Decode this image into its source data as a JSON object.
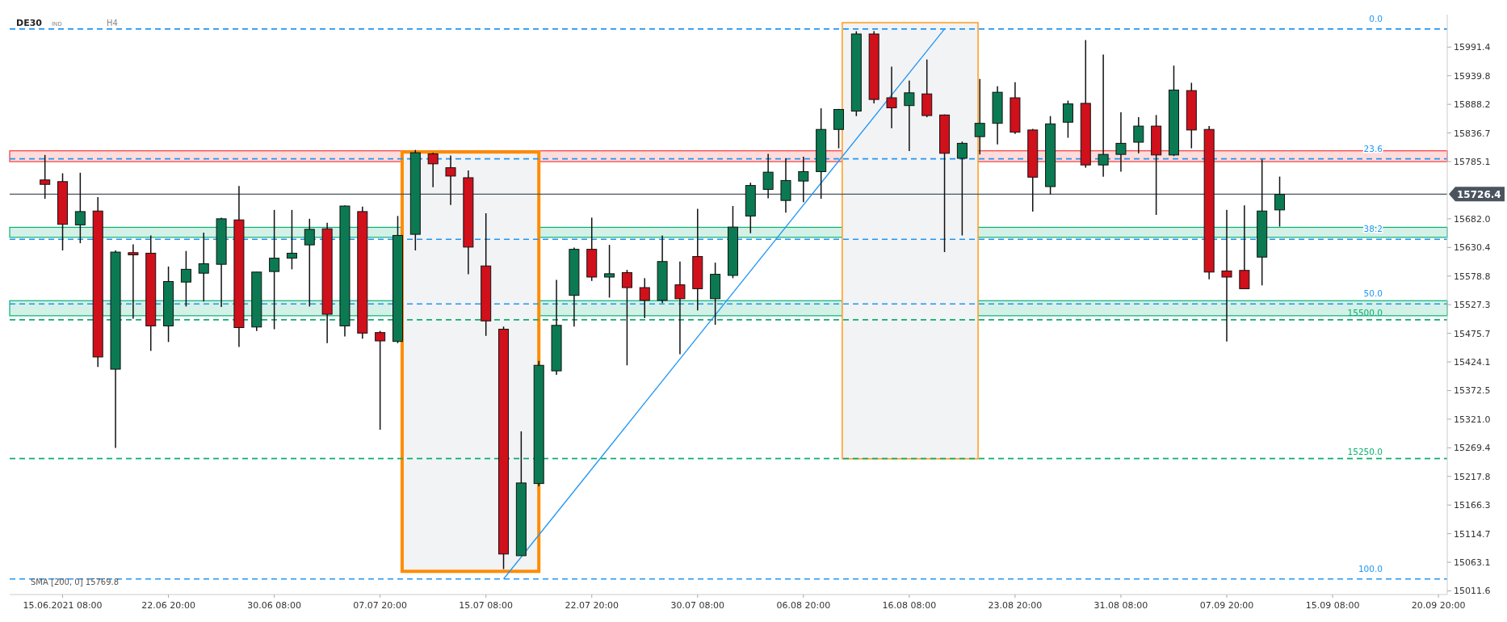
{
  "chart_data": {
    "type": "candlestick",
    "title": "DE30",
    "annotations": [
      "IND",
      "H4",
      "SMA [200, 0] 15769.8",
      {
        "text": "0.0",
        "y": 16024
      },
      {
        "text": "23.6",
        "y": 15790
      },
      {
        "text": "38.2",
        "y": 15645
      },
      {
        "text": "50.0",
        "y": 15528.6
      },
      {
        "text": "100.0",
        "y": 15033
      }
    ],
    "categories": [
      null,
      "15.06.2021 08:00",
      null,
      null,
      null,
      null,
      null,
      "22.06 20:00",
      null,
      null,
      null,
      null,
      null,
      "30.06 08:00",
      null,
      null,
      null,
      null,
      null,
      "07.07 20:00",
      null,
      null,
      null,
      null,
      null,
      "15.07 08:00",
      null,
      null,
      null,
      null,
      null,
      "22.07 20:00",
      null,
      null,
      null,
      null,
      null,
      "30.07 08:00",
      null,
      null,
      null,
      null,
      null,
      "06.08 20:00",
      null,
      null,
      null,
      null,
      null,
      "16.08 08:00",
      null,
      null,
      null,
      null,
      null,
      "23.08 20:00",
      null,
      null,
      null,
      null,
      null,
      "31.08 08:00",
      null,
      null,
      null,
      null,
      null,
      "07.09 20:00",
      null,
      null,
      null,
      null,
      null,
      "15.09 08:00",
      null,
      null,
      null,
      null,
      null,
      "20.09 20:00"
    ],
    "ohlc": [
      [
        15752,
        15797,
        15718,
        15744
      ],
      [
        15749,
        15764,
        15625,
        15672
      ],
      [
        15671,
        15765,
        15638,
        15695
      ],
      [
        15696,
        15721,
        15415,
        15433
      ],
      [
        15411,
        15625,
        15269,
        15622
      ],
      [
        15621,
        15636,
        15502,
        15617
      ],
      [
        15620,
        15652,
        15444,
        15489
      ],
      [
        15489,
        15596,
        15460,
        15569
      ],
      [
        15568,
        15624,
        15524,
        15591
      ],
      [
        15584,
        15657,
        15533,
        15601
      ],
      [
        15600,
        15684,
        15523,
        15682
      ],
      [
        15680,
        15741,
        15451,
        15486
      ],
      [
        15487,
        15586,
        15480,
        15586
      ],
      [
        15587,
        15698,
        15483,
        15611
      ],
      [
        15611,
        15698,
        15591,
        15620
      ],
      [
        15635,
        15682,
        15524,
        15663
      ],
      [
        15664,
        15675,
        15458,
        15510
      ],
      [
        15489,
        15706,
        15470,
        15705
      ],
      [
        15695,
        15704,
        15466,
        15476
      ],
      [
        15477,
        15480,
        15302,
        15462
      ],
      [
        15461,
        15687,
        15458,
        15652
      ],
      [
        15654,
        15806,
        15625,
        15801
      ],
      [
        15799,
        15801,
        15739,
        15781
      ],
      [
        15774,
        15796,
        15707,
        15759
      ],
      [
        15756,
        15769,
        15582,
        15631
      ],
      [
        15597,
        15692,
        15471,
        15498
      ],
      [
        15483,
        15488,
        15051,
        15078
      ],
      [
        15075,
        15299,
        15075,
        15206
      ],
      [
        15205,
        15426,
        15200,
        15418
      ],
      [
        15408,
        15572,
        15401,
        15490
      ],
      [
        15544,
        15630,
        15488,
        15627
      ],
      [
        15627,
        15684,
        15570,
        15577
      ],
      [
        15577,
        15635,
        15540,
        15583
      ],
      [
        15585,
        15590,
        15418,
        15558
      ],
      [
        15558,
        15575,
        15503,
        15535
      ],
      [
        15535,
        15652,
        15530,
        15605
      ],
      [
        15563,
        15605,
        15438,
        15538
      ],
      [
        15614,
        15700,
        15517,
        15556
      ],
      [
        15538,
        15603,
        15491,
        15582
      ],
      [
        15580,
        15705,
        15575,
        15667
      ],
      [
        15687,
        15747,
        15656,
        15742
      ],
      [
        15735,
        15799,
        15719,
        15766
      ],
      [
        15715,
        15791,
        15693,
        15751
      ],
      [
        15750,
        15794,
        15712,
        15767
      ],
      [
        15767,
        15881,
        15718,
        15843
      ],
      [
        15843,
        15880,
        15809,
        15879
      ],
      [
        15876,
        16020,
        15867,
        16015
      ],
      [
        16015,
        16020,
        15890,
        15897
      ],
      [
        15900,
        15956,
        15845,
        15882
      ],
      [
        15886,
        15931,
        15804,
        15909
      ],
      [
        15907,
        15969,
        15865,
        15868
      ],
      [
        15869,
        15870,
        15622,
        15800
      ],
      [
        15791,
        15821,
        15652,
        15818
      ],
      [
        15830,
        15934,
        15798,
        15854
      ],
      [
        15854,
        15921,
        15816,
        15910
      ],
      [
        15900,
        15928,
        15835,
        15838
      ],
      [
        15842,
        15844,
        15695,
        15757
      ],
      [
        15740,
        15867,
        15726,
        15853
      ],
      [
        15856,
        15895,
        15828,
        15889
      ],
      [
        15890,
        16004,
        15774,
        15779
      ],
      [
        15779,
        15978,
        15758,
        15798
      ],
      [
        15798,
        15874,
        15767,
        15818
      ],
      [
        15820,
        15865,
        15800,
        15849
      ],
      [
        15849,
        15869,
        15689,
        15797
      ],
      [
        15797,
        15958,
        15795,
        15914
      ],
      [
        15913,
        15927,
        15809,
        15842
      ],
      [
        15843,
        15849,
        15573,
        15586
      ],
      [
        15588,
        15698,
        15461,
        15577
      ],
      [
        15589,
        15706,
        15555,
        15556
      ],
      [
        15613,
        15789,
        15562,
        15696
      ],
      [
        15698,
        15758,
        15668,
        15726
      ],
      null,
      null,
      null,
      null,
      null,
      null,
      null,
      null,
      null
    ],
    "series": [
      {
        "type": "line",
        "values": [
          null,
          null,
          null,
          null,
          null,
          null,
          null,
          null,
          null,
          null,
          null,
          null,
          null,
          null,
          null,
          null,
          null,
          null,
          null,
          null,
          null,
          null,
          null,
          null,
          null,
          null,
          15033,
          null,
          null,
          null,
          null,
          null,
          null,
          null,
          null,
          null,
          null,
          null,
          null,
          null,
          null,
          null,
          null,
          null,
          null,
          null,
          null,
          null,
          null,
          null,
          null,
          16024,
          null,
          null,
          null,
          null,
          null,
          null,
          null,
          null,
          null,
          null,
          null,
          null,
          null,
          null,
          null,
          null,
          null,
          null,
          null,
          null,
          null,
          null,
          null,
          null,
          null,
          null,
          null,
          null
        ],
        "color": "#2196f3"
      }
    ],
    "ylim": [
      15005,
      16050
    ],
    "yticks": [
      15011.6,
      15063.1,
      15114.7,
      15166.3,
      15217.8,
      15269.4,
      {
        "value": 15321.0,
        "label": "15321.0"
      },
      15372.5,
      15424.1,
      15475.7,
      15527.3,
      15578.8,
      15630.4,
      {
        "value": 15682.0,
        "label": "15682.0"
      },
      15785.1,
      15836.7,
      15888.2,
      15939.8,
      15991.4
    ],
    "ref_lines": [
      {
        "axis": "y",
        "value": 16024,
        "color": "#2196f3",
        "line_style": "dashed"
      },
      {
        "axis": "y",
        "value": 15790,
        "color": "#2196f3",
        "line_style": "dashed"
      },
      {
        "axis": "y",
        "value": 15645,
        "color": "#2196f3",
        "line_style": "dashed"
      },
      {
        "axis": "y",
        "value": 15528.6,
        "color": "#2196f3",
        "line_style": "dashed"
      },
      {
        "axis": "y",
        "value": 15033,
        "color": "#2196f3",
        "line_style": "dashed"
      },
      {
        "axis": "y",
        "value": 15500,
        "label": "15500.0",
        "color": "#0aaf72",
        "line_style": "dashed"
      },
      {
        "axis": "y",
        "value": 15250,
        "label": "15250.0",
        "color": "#0aaf72",
        "line_style": "dashed"
      },
      {
        "axis": "y",
        "value": 15726.4,
        "label": "15726.4",
        "color": "#4a545e",
        "line_style": "solid"
      }
    ],
    "bands": [
      {
        "axis": "y",
        "from": 15785,
        "to": 15804.5,
        "color": "#f23b3b"
      },
      {
        "axis": "y",
        "from": 15648.6,
        "to": 15666.6,
        "color": "#0aaf72"
      },
      {
        "axis": "y",
        "from": 15507.3,
        "to": 15534.4,
        "color": "#0aaf72"
      }
    ],
    "grid": false
  }
}
